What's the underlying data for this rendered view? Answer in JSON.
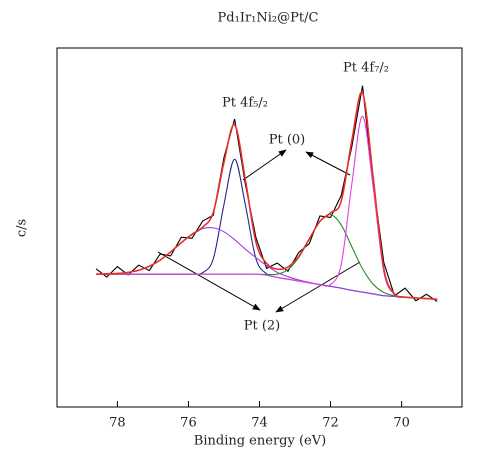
{
  "chart_data": {
    "type": "line",
    "title": "Pd₁Ir₁Ni₂@Pt/C",
    "x_label": "Binding energy (eV)",
    "y_label": "c/s",
    "xlim": [
      79.7,
      68.3
    ],
    "xticks": [
      78,
      76,
      74,
      72,
      70
    ],
    "ylim": [
      0,
      100
    ],
    "x": [
      78.6,
      78.3,
      78.0,
      77.7,
      77.4,
      77.1,
      76.8,
      76.5,
      76.2,
      75.9,
      75.6,
      75.3,
      75.0,
      74.7,
      74.4,
      74.1,
      73.8,
      73.5,
      73.2,
      72.9,
      72.6,
      72.3,
      72.0,
      71.7,
      71.4,
      71.1,
      70.8,
      70.5,
      70.2,
      69.9,
      69.6,
      69.3,
      69.0
    ],
    "series": [
      {
        "color": "#000000",
        "values": [
          38.5,
          36.2,
          39.1,
          36.8,
          39.5,
          38.0,
          42.6,
          42.1,
          47.3,
          47.0,
          51.8,
          53.4,
          69.5,
          80.2,
          62.1,
          47.2,
          38.6,
          40.1,
          37.8,
          43.0,
          45.5,
          53.2,
          52.8,
          58.9,
          72.6,
          89.5,
          62.4,
          40.2,
          31.0,
          33.1,
          29.6,
          31.4,
          29.4
        ]
      },
      {
        "color": "#1f2a8c",
        "values": [
          37.0,
          37.0,
          37.0,
          37.0,
          37.0,
          37.0,
          37.0,
          37.0,
          37.0,
          37.0,
          37.4,
          41.3,
          56.4,
          69.0,
          56.4,
          41.3,
          37.1,
          36.1,
          35.6,
          35.1,
          34.6,
          34.1,
          33.6,
          33.1,
          32.5,
          32.0,
          31.5,
          31.0,
          30.8,
          30.6,
          30.4,
          30.2,
          30.0
        ]
      },
      {
        "color": "#a040e0",
        "values": [
          37.0,
          37.1,
          37.2,
          37.5,
          38.1,
          39.2,
          40.9,
          43.2,
          45.8,
          48.1,
          49.7,
          49.9,
          48.8,
          46.6,
          44.0,
          41.6,
          39.4,
          37.5,
          36.3,
          35.4,
          34.7,
          34.1,
          33.6,
          33.1,
          32.5,
          32.0,
          31.5,
          31.0,
          30.8,
          30.6,
          30.4,
          30.2,
          30.0
        ]
      },
      {
        "color": "#2a8a2a",
        "values": [
          37.0,
          37.0,
          37.0,
          37.0,
          37.0,
          37.0,
          37.0,
          37.0,
          37.0,
          37.0,
          37.0,
          37.0,
          37.0,
          37.0,
          37.0,
          37.0,
          36.9,
          37.0,
          38.3,
          41.6,
          46.7,
          51.7,
          53.6,
          50.7,
          44.6,
          38.5,
          34.2,
          31.9,
          31.0,
          30.6,
          30.4,
          30.2,
          30.0
        ]
      },
      {
        "color": "#e040e0",
        "values": [
          37.0,
          37.0,
          37.0,
          37.0,
          37.0,
          37.0,
          37.0,
          37.0,
          37.0,
          37.0,
          37.0,
          37.0,
          37.0,
          37.0,
          37.0,
          37.0,
          36.7,
          36.1,
          35.6,
          35.1,
          34.6,
          34.1,
          34.1,
          39.7,
          62.2,
          81.0,
          61.2,
          37.6,
          31.3,
          30.6,
          30.4,
          30.2,
          30.0
        ]
      },
      {
        "color": "#e8302a",
        "values": [
          37.0,
          37.1,
          37.2,
          37.5,
          38.1,
          39.2,
          40.9,
          43.2,
          45.8,
          48.1,
          50.1,
          54.2,
          68.2,
          78.6,
          63.4,
          45.9,
          40.0,
          38.4,
          39.0,
          41.9,
          46.8,
          51.7,
          54.1,
          57.3,
          74.3,
          87.5,
          63.9,
          38.5,
          31.5,
          30.6,
          30.4,
          30.2,
          30.0
        ]
      }
    ],
    "annotations": [
      "Pt 4f₅/₂",
      "Pt 4f₇/₂",
      "Pt (0)",
      "Pt (2)"
    ]
  }
}
